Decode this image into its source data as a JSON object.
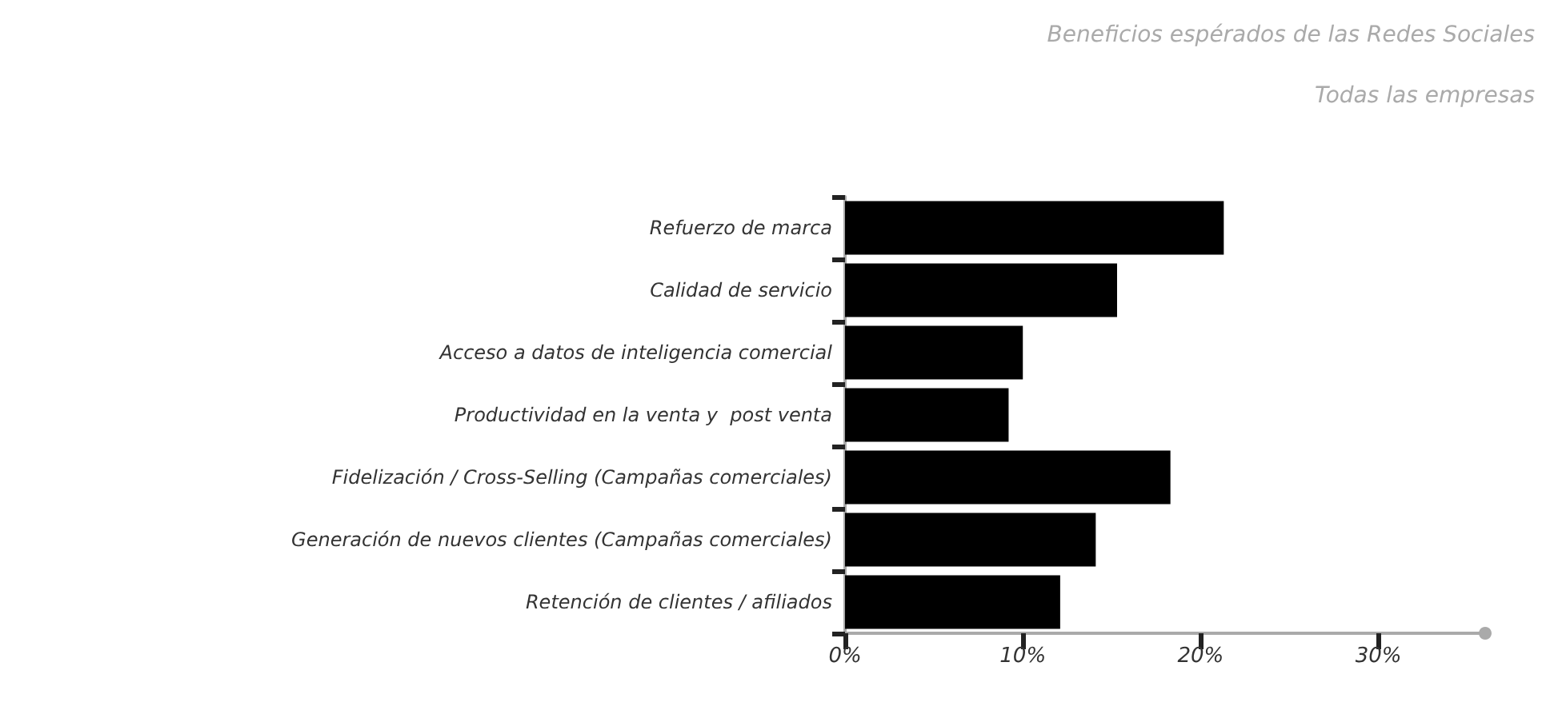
{
  "chart_data": {
    "type": "bar",
    "orientation": "horizontal",
    "title": "Beneficios espérados de las Redes Sociales",
    "subtitle": "Todas las empresas",
    "categories": [
      "Refuerzo de marca",
      "Calidad de servicio",
      "Acceso a datos de inteligencia comercial",
      "Productividad en la venta y  post venta",
      "Fidelización / Cross-Selling (Campañas comerciales)",
      "Generación de nuevos clientes (Campañas comerciales)",
      "Retención de clientes / afiliados"
    ],
    "values": [
      21.3,
      15.3,
      10.0,
      9.2,
      18.3,
      14.1,
      12.1
    ],
    "color": "#000000",
    "xlim": [
      0,
      36
    ],
    "xticks": [
      {
        "value": 0,
        "label": "0%"
      },
      {
        "value": 10,
        "label": "10%"
      },
      {
        "value": 20,
        "label": "20%"
      },
      {
        "value": 30,
        "label": "30%"
      }
    ],
    "grid": false
  }
}
